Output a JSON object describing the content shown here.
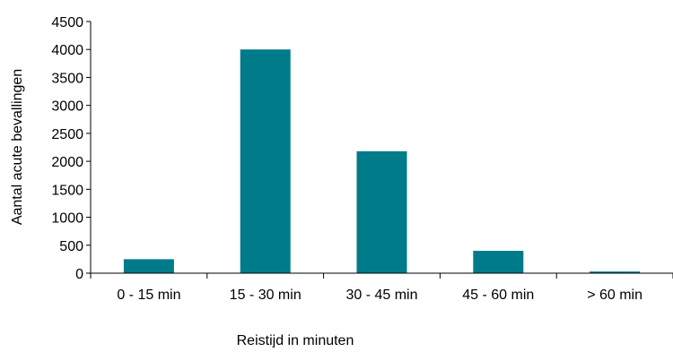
{
  "chart_data": {
    "type": "bar",
    "categories": [
      "0 - 15 min",
      "15 - 30 min",
      "30 - 45 min",
      "45 - 60 min",
      "> 60 min"
    ],
    "values": [
      250,
      4000,
      2180,
      400,
      30
    ],
    "xlabel": "Reistijd in minuten",
    "ylabel": "Aantal acute bevallingen",
    "ylim": [
      0,
      4500
    ],
    "yticks": [
      0,
      500,
      1000,
      1500,
      2000,
      2500,
      3000,
      3500,
      4000,
      4500
    ],
    "bar_color": "#007B8A",
    "grid": false,
    "legend": "none"
  }
}
